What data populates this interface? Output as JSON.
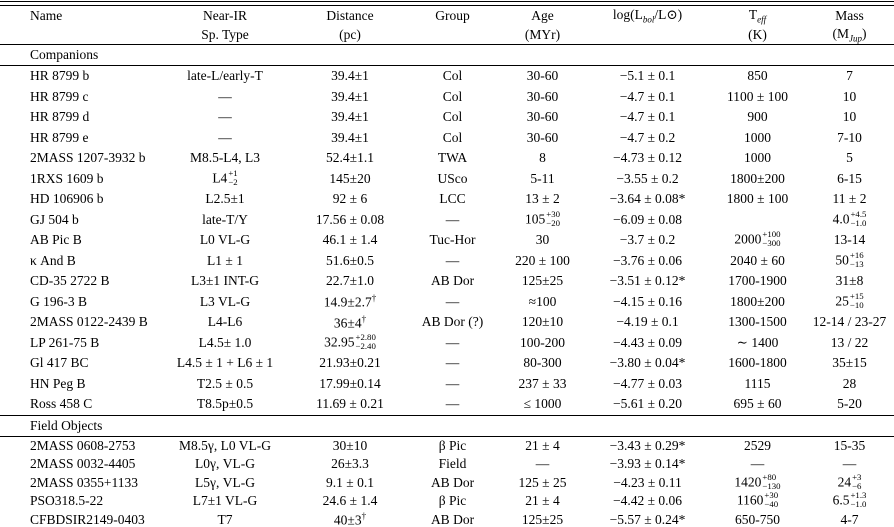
{
  "colors": {
    "background": "#ffffff",
    "text": "#000000",
    "rule": "#000000"
  },
  "table": {
    "columns": [
      {
        "key": "name",
        "line1": "Name",
        "line2": ""
      },
      {
        "key": "sp-type",
        "line1": "Near-IR",
        "line2": "Sp. Type"
      },
      {
        "key": "distance",
        "line1": "Distance",
        "line2": "(pc)"
      },
      {
        "key": "group",
        "line1": "Group",
        "line2": ""
      },
      {
        "key": "age",
        "line1": "Age",
        "line2": "(MYr)"
      },
      {
        "key": "lbol",
        "line1": "log(L_{bol}/L⊙)",
        "line2": ""
      },
      {
        "key": "teff",
        "line1": "T_{eff}",
        "line2": "(K)"
      },
      {
        "key": "mass",
        "line1": "Mass",
        "line2": "(M_{Jup})"
      }
    ],
    "sections": [
      {
        "label": "Companions",
        "rows": [
          [
            "HR 8799 b",
            "late-L/early-T",
            "39.4±1",
            "Col",
            "30-60",
            "−5.1 ± 0.1",
            "850",
            "7"
          ],
          [
            "HR 8799 c",
            "—",
            "39.4±1",
            "Col",
            "30-60",
            "−4.7 ± 0.1",
            "1100 ± 100",
            "10"
          ],
          [
            "HR 8799 d",
            "—",
            "39.4±1",
            "Col",
            "30-60",
            "−4.7 ± 0.1",
            "900",
            "10"
          ],
          [
            "HR 8799 e",
            "—",
            "39.4±1",
            "Col",
            "30-60",
            "−4.7 ± 0.2",
            "1000",
            "7-10"
          ],
          [
            "2MASS 1207-3932 b",
            "M8.5-L4, L3",
            "52.4±1.1",
            "TWA",
            "8",
            "−4.73 ± 0.12",
            "1000",
            "5"
          ],
          [
            "1RXS 1609 b",
            "L4^{+1}_{−2}",
            "145±20",
            "USco",
            "5-11",
            "−3.55 ± 0.2",
            "1800±200",
            "6-15"
          ],
          [
            "HD 106906 b",
            "L2.5±1",
            "92 ± 6",
            "LCC",
            "13 ± 2",
            "−3.64 ± 0.08*",
            "1800 ± 100",
            "11 ± 2"
          ],
          [
            "GJ 504 b",
            "late-T/Y",
            "17.56 ± 0.08",
            "—",
            "105^{+30}_{−20}",
            "−6.09 ± 0.08",
            "",
            "4.0^{+4.5}_{−1.0}"
          ],
          [
            "AB Pic B",
            "L0 VL-G",
            "46.1 ± 1.4",
            "Tuc-Hor",
            "30",
            "−3.7 ± 0.2",
            "2000^{+100}_{−300}",
            "13-14"
          ],
          [
            "κ And B",
            "L1 ± 1",
            "51.6±0.5",
            "—",
            "220 ± 100",
            "−3.76 ± 0.06",
            "2040 ± 60",
            "50^{+16}_{−13}"
          ],
          [
            "CD-35 2722 B",
            "L3±1 INT-G",
            "22.7±1.0",
            "AB Dor",
            "125±25",
            "−3.51 ± 0.12*",
            "1700-1900",
            "31±8"
          ],
          [
            "G 196-3 B",
            "L3 VL-G",
            "14.9±2.7^{†}",
            "—",
            "≈100",
            "−4.15 ± 0.16",
            "1800±200",
            "25^{+15}_{−10}"
          ],
          [
            "2MASS 0122-2439 B",
            "L4-L6",
            "36±4^{†}",
            "AB Dor (?)",
            "120±10",
            "−4.19 ± 0.1",
            "1300-1500",
            "12-14 / 23-27"
          ],
          [
            "LP 261-75 B",
            "L4.5± 1.0",
            "32.95^{+2.80}_{−2.40}",
            "—",
            "100-200",
            "−4.43 ± 0.09",
            "∼ 1400",
            "13 / 22"
          ],
          [
            "Gl 417 BC",
            "L4.5 ± 1 + L6 ± 1",
            "21.93±0.21",
            "—",
            "80-300",
            "−3.80 ± 0.04*",
            "1600-1800",
            "35±15"
          ],
          [
            "HN Peg B",
            "T2.5 ± 0.5",
            "17.99±0.14",
            "—",
            "237 ± 33",
            "−4.77 ± 0.03",
            "1115",
            "28"
          ],
          [
            "Ross 458 C",
            "T8.5p±0.5",
            "11.69 ± 0.21",
            "—",
            "≤ 1000",
            "−5.61 ± 0.20",
            "695 ± 60",
            "5-20"
          ]
        ]
      },
      {
        "label": "Field Objects",
        "rows": [
          [
            "2MASS 0608-2753",
            "M8.5γ, L0 VL-G",
            "30±10",
            "β Pic",
            "21 ± 4",
            "−3.43 ± 0.29*",
            "2529",
            "15-35"
          ],
          [
            "2MASS 0032-4405",
            "L0γ, VL-G",
            "26±3.3",
            "Field",
            "—",
            "−3.93 ± 0.14*",
            "—",
            "—"
          ],
          [
            "2MASS 0355+1133",
            "L5γ, VL-G",
            "9.1 ± 0.1",
            "AB Dor",
            "125 ± 25",
            "−4.23 ± 0.11",
            "1420^{+80}_{−130}",
            "24^{+3}_{−6}"
          ],
          [
            "PSO318.5-22",
            "L7±1 VL-G",
            "24.6 ± 1.4",
            "β Pic",
            "21 ± 4",
            "−4.42 ± 0.06",
            "1160^{+30}_{−40}",
            "6.5^{+1.3}_{−1.0}"
          ],
          [
            "CFBDSIR2149-0403",
            "T7",
            "40±3^{†}",
            "AB Dor",
            "125±25",
            "−5.57 ± 0.24*",
            "650-750",
            "4-7"
          ]
        ]
      }
    ]
  }
}
